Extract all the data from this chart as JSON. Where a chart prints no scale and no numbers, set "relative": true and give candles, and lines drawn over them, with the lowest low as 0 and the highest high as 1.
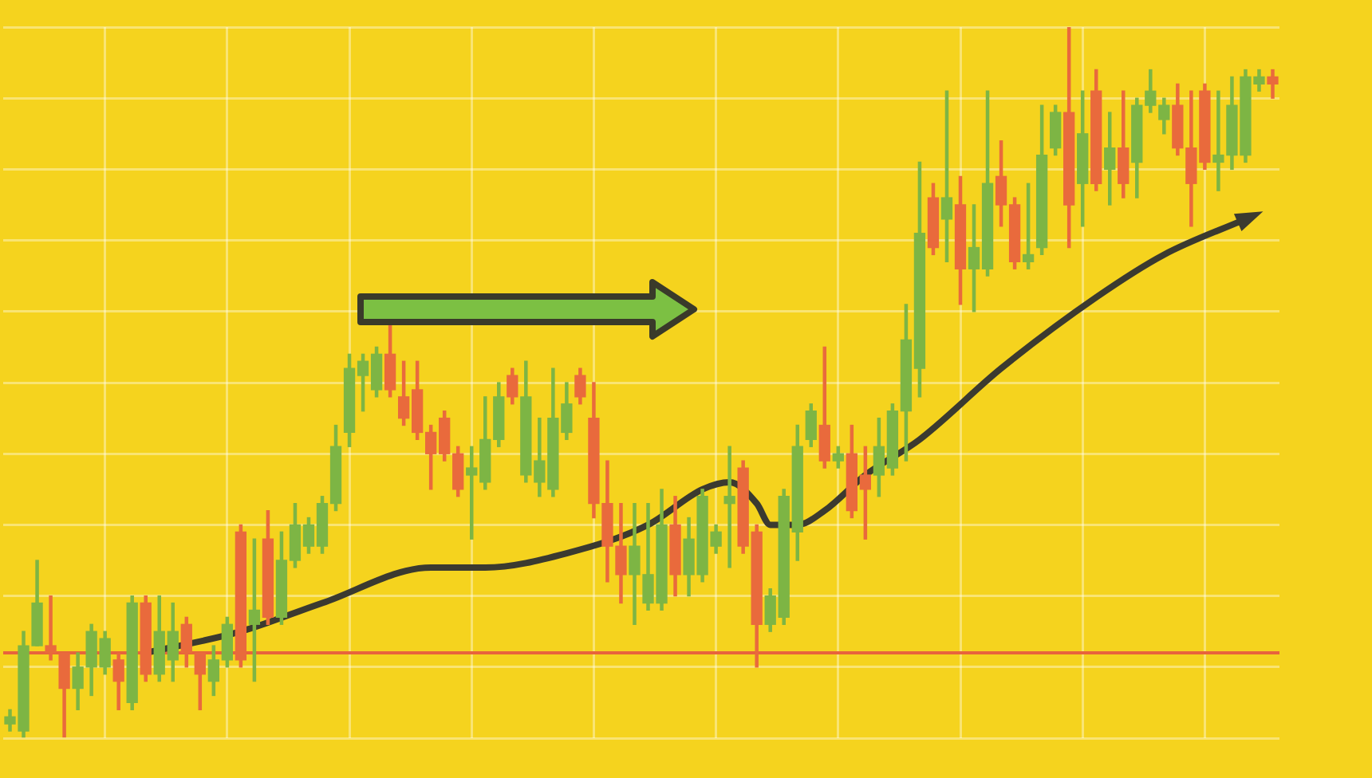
{
  "chart_data": {
    "type": "candlestick",
    "relative": true,
    "grid": true,
    "categories": [
      null,
      null,
      null,
      null,
      null,
      null,
      null,
      null,
      null,
      null,
      null,
      null,
      null,
      null,
      null,
      null,
      null,
      null,
      null,
      null,
      null,
      null,
      null,
      null,
      null,
      null,
      null,
      null,
      null,
      null,
      null,
      null,
      null,
      null,
      null,
      null,
      null,
      null,
      null,
      null,
      null,
      null,
      null,
      null,
      null,
      null,
      null,
      null,
      null,
      null,
      null,
      null,
      null,
      null,
      null,
      null,
      null,
      null,
      null,
      null,
      null,
      null,
      null,
      null,
      null,
      null,
      null,
      null,
      null,
      null,
      null,
      null,
      null,
      null,
      null,
      null,
      null,
      null,
      null,
      null,
      null,
      null,
      null,
      null,
      null,
      null,
      null,
      null,
      null,
      null,
      null,
      null,
      null,
      null
    ],
    "ref_lines": [
      {
        "axis": "y",
        "value": 0.12,
        "color": "#e8643c"
      }
    ],
    "series": [
      {
        "ohlc": [
          [
            0.02,
            0.04,
            0.01,
            0.03
          ],
          [
            0.01,
            0.15,
            0,
            0.13
          ],
          [
            0.13,
            0.25,
            0.13,
            0.19
          ],
          [
            0.13,
            0.2,
            0.11,
            0.12
          ],
          [
            0.12,
            0.12,
            0,
            0.07
          ],
          [
            0.07,
            0.12,
            0.04,
            0.1
          ],
          [
            0.1,
            0.16,
            0.06,
            0.15
          ],
          [
            0.1,
            0.15,
            0.09,
            0.14
          ],
          [
            0.11,
            0.12,
            0.04,
            0.08
          ],
          [
            0.05,
            0.2,
            0.04,
            0.19
          ],
          [
            0.19,
            0.2,
            0.08,
            0.09
          ],
          [
            0.09,
            0.2,
            0.08,
            0.15
          ],
          [
            0.11,
            0.19,
            0.08,
            0.15
          ],
          [
            0.16,
            0.17,
            0.1,
            0.12
          ],
          [
            0.12,
            0.12,
            0.04,
            0.09
          ],
          [
            0.08,
            0.13,
            0.06,
            0.11
          ],
          [
            0.11,
            0.17,
            0.1,
            0.16
          ],
          [
            0.29,
            0.3,
            0.1,
            0.11
          ],
          [
            0.16,
            0.28,
            0.08,
            0.18
          ],
          [
            0.28,
            0.32,
            0.16,
            0.17
          ],
          [
            0.17,
            0.29,
            0.16,
            0.25
          ],
          [
            0.25,
            0.33,
            0.24,
            0.3
          ],
          [
            0.27,
            0.31,
            0.26,
            0.3
          ],
          [
            0.27,
            0.34,
            0.26,
            0.33
          ],
          [
            0.33,
            0.44,
            0.32,
            0.41
          ],
          [
            0.43,
            0.54,
            0.41,
            0.52
          ],
          [
            0.51,
            0.54,
            0.46,
            0.53
          ],
          [
            0.49,
            0.55,
            0.48,
            0.54
          ],
          [
            0.54,
            0.58,
            0.48,
            0.49
          ],
          [
            0.48,
            0.53,
            0.44,
            0.45
          ],
          [
            0.49,
            0.53,
            0.42,
            0.43
          ],
          [
            0.43,
            0.44,
            0.35,
            0.4
          ],
          [
            0.45,
            0.46,
            0.39,
            0.4
          ],
          [
            0.4,
            0.41,
            0.34,
            0.35
          ],
          [
            0.37,
            0.41,
            0.28,
            0.38
          ],
          [
            0.36,
            0.48,
            0.35,
            0.42
          ],
          [
            0.42,
            0.5,
            0.41,
            0.48
          ],
          [
            0.51,
            0.52,
            0.47,
            0.48
          ],
          [
            0.37,
            0.53,
            0.36,
            0.48
          ],
          [
            0.36,
            0.45,
            0.34,
            0.39
          ],
          [
            0.35,
            0.52,
            0.34,
            0.45
          ],
          [
            0.43,
            0.5,
            0.42,
            0.47
          ],
          [
            0.51,
            0.52,
            0.47,
            0.48
          ],
          [
            0.45,
            0.5,
            0.31,
            0.33
          ],
          [
            0.33,
            0.39,
            0.22,
            0.27
          ],
          [
            0.27,
            0.33,
            0.19,
            0.23
          ],
          [
            0.23,
            0.33,
            0.16,
            0.27
          ],
          [
            0.19,
            0.33,
            0.18,
            0.23
          ],
          [
            0.19,
            0.35,
            0.18,
            0.3
          ],
          [
            0.3,
            0.34,
            0.2,
            0.23
          ],
          [
            0.23,
            0.31,
            0.2,
            0.28
          ],
          [
            0.23,
            0.35,
            0.22,
            0.34
          ],
          [
            0.27,
            0.3,
            0.26,
            0.29
          ],
          [
            0.33,
            0.41,
            0.24,
            0.34
          ],
          [
            0.38,
            0.39,
            0.26,
            0.27
          ],
          [
            0.29,
            0.3,
            0.1,
            0.16
          ],
          [
            0.16,
            0.21,
            0.15,
            0.2
          ],
          [
            0.17,
            0.35,
            0.16,
            0.34
          ],
          [
            0.29,
            0.44,
            0.25,
            0.41
          ],
          [
            0.42,
            0.47,
            0.41,
            0.46
          ],
          [
            0.44,
            0.55,
            0.38,
            0.39
          ],
          [
            0.39,
            0.41,
            0.38,
            0.4
          ],
          [
            0.4,
            0.44,
            0.31,
            0.32
          ],
          [
            0.37,
            0.41,
            0.28,
            0.35
          ],
          [
            0.37,
            0.45,
            0.34,
            0.41
          ],
          [
            0.38,
            0.47,
            0.37,
            0.46
          ],
          [
            0.46,
            0.61,
            0.39,
            0.56
          ],
          [
            0.52,
            0.81,
            0.48,
            0.71
          ],
          [
            0.76,
            0.78,
            0.68,
            0.69
          ],
          [
            0.73,
            0.91,
            0.67,
            0.76
          ],
          [
            0.75,
            0.79,
            0.61,
            0.66
          ],
          [
            0.66,
            0.75,
            0.6,
            0.69
          ],
          [
            0.66,
            0.91,
            0.65,
            0.78
          ],
          [
            0.79,
            0.84,
            0.72,
            0.75
          ],
          [
            0.75,
            0.76,
            0.66,
            0.67
          ],
          [
            0.67,
            0.78,
            0.66,
            0.68
          ],
          [
            0.69,
            0.89,
            0.68,
            0.82
          ],
          [
            0.83,
            0.89,
            0.82,
            0.88
          ],
          [
            0.88,
            1,
            0.69,
            0.75
          ],
          [
            0.78,
            0.91,
            0.72,
            0.85
          ],
          [
            0.91,
            0.94,
            0.77,
            0.78
          ],
          [
            0.8,
            0.88,
            0.75,
            0.83
          ],
          [
            0.83,
            0.91,
            0.76,
            0.78
          ],
          [
            0.81,
            0.9,
            0.76,
            0.89
          ],
          [
            0.89,
            0.94,
            0.88,
            0.91
          ],
          [
            0.87,
            0.9,
            0.85,
            0.89
          ],
          [
            0.89,
            0.92,
            0.82,
            0.83
          ],
          [
            0.83,
            0.91,
            0.72,
            0.78
          ],
          [
            0.91,
            0.92,
            0.8,
            0.81
          ],
          [
            0.81,
            0.91,
            0.77,
            0.82
          ],
          [
            0.82,
            0.93,
            0.8,
            0.89
          ],
          [
            0.82,
            0.94,
            0.81,
            0.93
          ],
          [
            0.92,
            0.94,
            0.91,
            0.93
          ],
          [
            0.93,
            0.94,
            0.9,
            0.92
          ]
        ],
        "colors": [
          "#7db544",
          "#7db544",
          "#7db544",
          "#e96a3c",
          "#e96a3c",
          "#7db544",
          "#7db544",
          "#7db544",
          "#e96a3c",
          "#7db544",
          "#e96a3c",
          "#7db544",
          "#7db544",
          "#e96a3c",
          "#e96a3c",
          "#7db544",
          "#7db544",
          "#e96a3c",
          "#7db544",
          "#e96a3c",
          "#7db544",
          "#7db544",
          "#7db544",
          "#7db544",
          "#7db544",
          "#7db544",
          "#7db544",
          "#7db544",
          "#e96a3c",
          "#e96a3c",
          "#e96a3c",
          "#e96a3c",
          "#e96a3c",
          "#e96a3c",
          "#7db544",
          "#7db544",
          "#7db544",
          "#e96a3c",
          "#7db544",
          "#7db544",
          "#7db544",
          "#7db544",
          "#e96a3c",
          "#e96a3c",
          "#e96a3c",
          "#e96a3c",
          "#7db544",
          "#7db544",
          "#7db544",
          "#e96a3c",
          "#7db544",
          "#7db544",
          "#7db544",
          "#7db544",
          "#e96a3c",
          "#e96a3c",
          "#7db544",
          "#7db544",
          "#7db544",
          "#7db544",
          "#e96a3c",
          "#7db544",
          "#e96a3c",
          "#e96a3c",
          "#7db544",
          "#7db544",
          "#7db544",
          "#7db544",
          "#e96a3c",
          "#7db544",
          "#e96a3c",
          "#7db544",
          "#7db544",
          "#e96a3c",
          "#e96a3c",
          "#7db544",
          "#7db544",
          "#7db544",
          "#e96a3c",
          "#7db544",
          "#e96a3c",
          "#7db544",
          "#e96a3c",
          "#7db544",
          "#7db544",
          "#7db544",
          "#e96a3c",
          "#e96a3c",
          "#e96a3c",
          "#7db544",
          "#7db544",
          "#7db544",
          "#7db544",
          "#e96a3c"
        ]
      },
      {
        "type": "line",
        "color": "#3b3a30",
        "values": [
          null,
          null,
          null,
          null,
          null,
          null,
          null,
          null,
          null,
          null,
          0.12,
          null,
          null,
          null,
          null,
          null,
          null,
          0.15,
          null,
          null,
          null,
          null,
          null,
          0.19,
          null,
          null,
          null,
          null,
          null,
          null,
          null,
          0.24,
          null,
          null,
          null,
          0.24,
          null,
          null,
          null,
          null,
          null,
          0.26,
          null,
          null,
          null,
          null,
          null,
          0.3,
          null,
          null,
          null,
          0.35,
          null,
          0.36,
          null,
          0.33,
          0.3,
          null,
          0.3,
          null,
          0.32,
          null,
          null,
          0.37,
          null,
          null,
          null,
          0.42,
          null,
          null,
          null,
          null,
          null,
          0.52,
          null,
          null,
          null,
          null,
          null,
          null,
          0.62,
          null,
          null,
          null,
          null,
          0.68,
          null,
          null,
          null,
          null,
          null,
          0.73,
          null,
          null
        ]
      }
    ]
  }
}
